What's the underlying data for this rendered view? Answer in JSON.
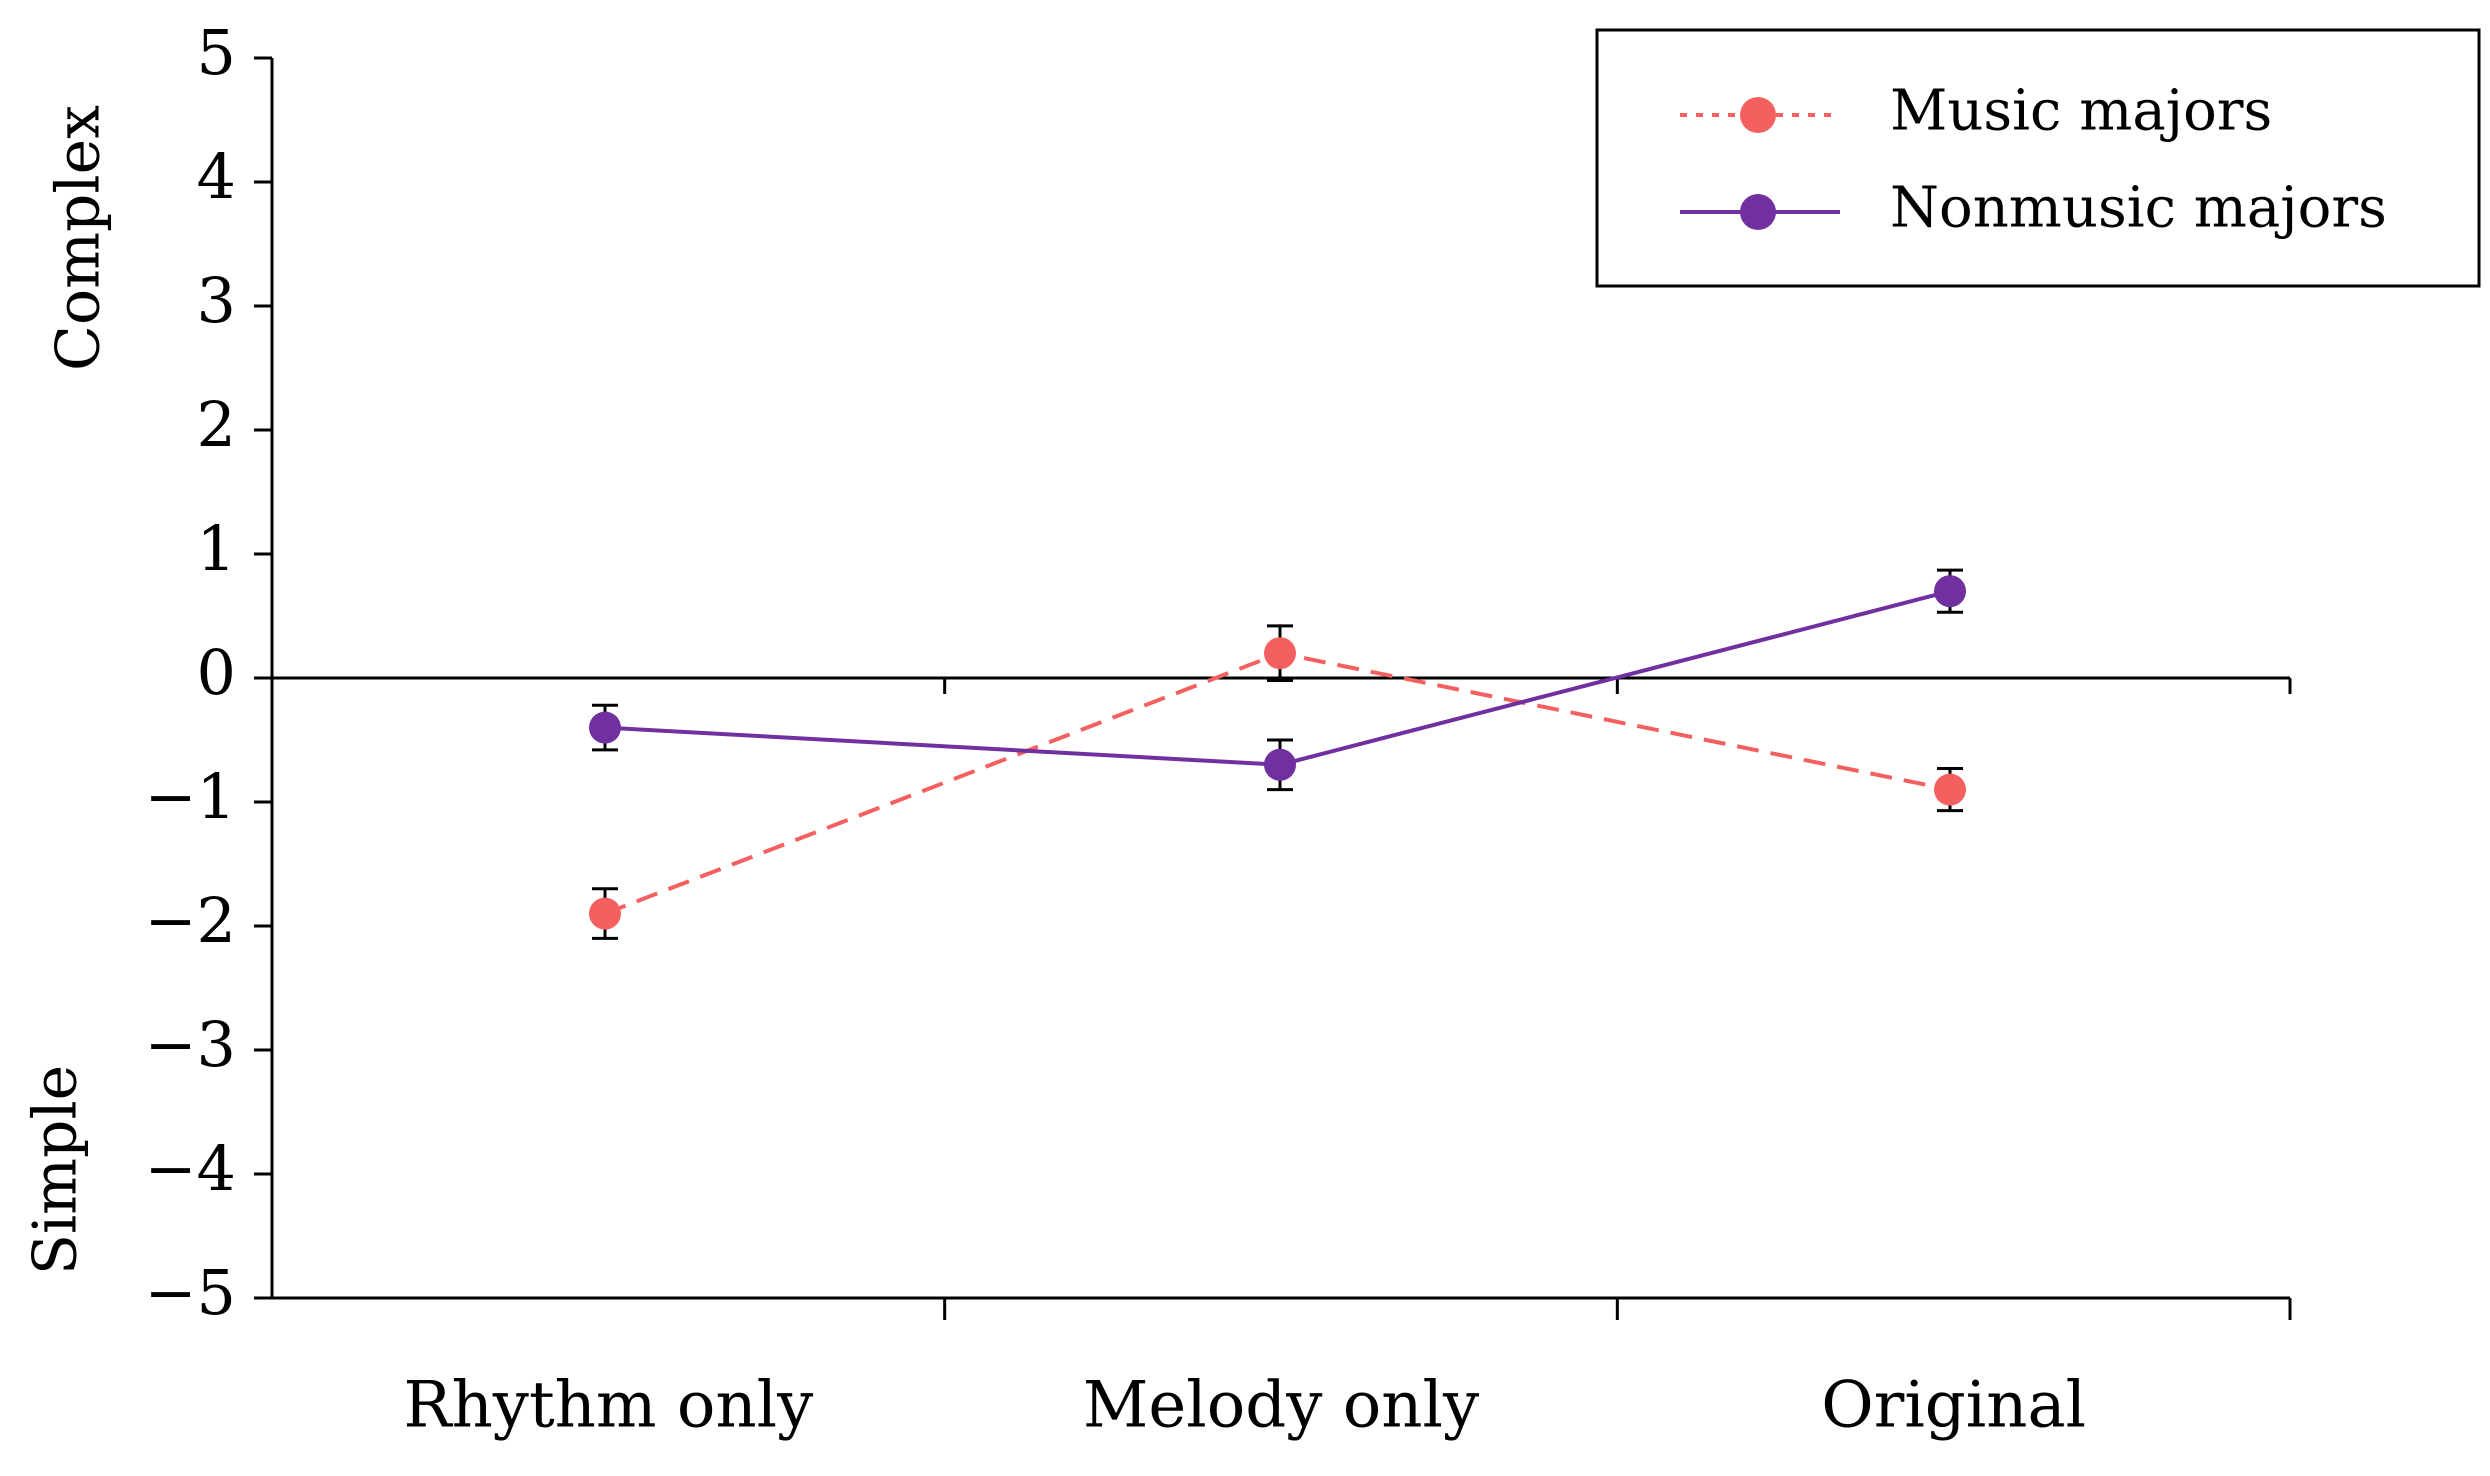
{
  "chart_data": {
    "type": "line",
    "title": "",
    "xlabel": "",
    "ylabel": "",
    "y_annotations": {
      "top": "Complex",
      "bottom": "Simple"
    },
    "categories": [
      "Rhythm only",
      "Melody only",
      "Original"
    ],
    "ylim": [
      -5,
      5
    ],
    "yticks": [
      5,
      4,
      3,
      2,
      1,
      0,
      -1,
      -2,
      -3,
      -4,
      -5
    ],
    "ytick_labels": [
      "5",
      "4",
      "3",
      "2",
      "1",
      "0",
      "−1",
      "−2",
      "−3",
      "−4",
      "−5"
    ],
    "grid": false,
    "legend_position": "top-right",
    "series": [
      {
        "name": "Music majors",
        "color": "#F4605F",
        "line_style": "dashed",
        "legend_line_style": "dotted",
        "values": [
          -1.9,
          0.2,
          -0.9
        ],
        "errors": [
          0.2,
          0.22,
          0.17
        ]
      },
      {
        "name": "Nonmusic majors",
        "color": "#7030A0",
        "line_style": "solid",
        "legend_line_style": "solid",
        "values": [
          -0.4,
          -0.7,
          0.7
        ],
        "errors": [
          0.18,
          0.2,
          0.17
        ]
      }
    ]
  }
}
